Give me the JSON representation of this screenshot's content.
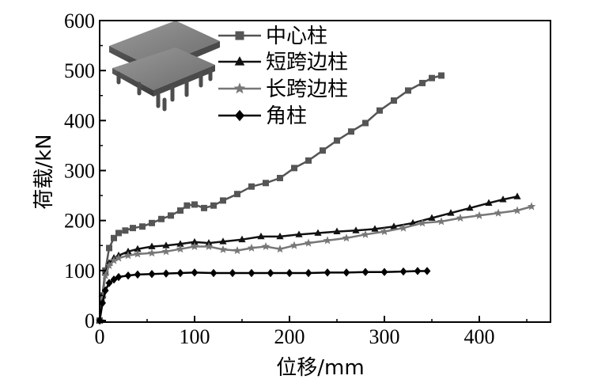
{
  "chart_data": {
    "type": "line",
    "xlabel": "位移/mm",
    "ylabel": "荷载/kN",
    "xlim": [
      0,
      475
    ],
    "ylim": [
      0,
      600
    ],
    "x_ticks": [
      0,
      100,
      200,
      300,
      400
    ],
    "y_ticks": [
      0,
      100,
      200,
      300,
      400,
      500,
      600
    ],
    "x_tick_labels": [
      "0",
      "100",
      "200",
      "300",
      "400"
    ],
    "y_tick_labels": [
      "0",
      "100",
      "200",
      "300",
      "400",
      "500",
      "600"
    ],
    "grid": false,
    "legend_position": "top-right",
    "inset_image": "3D slab-column structure model",
    "series": [
      {
        "name": "中心柱",
        "marker": "square",
        "color": "#555555",
        "x": [
          0,
          3,
          6,
          10,
          15,
          20,
          27,
          35,
          45,
          55,
          65,
          75,
          85,
          92,
          100,
          110,
          120,
          130,
          145,
          160,
          175,
          190,
          205,
          220,
          235,
          250,
          265,
          280,
          295,
          310,
          325,
          340,
          350,
          360
        ],
        "y": [
          0,
          50,
          100,
          145,
          165,
          175,
          180,
          185,
          188,
          195,
          203,
          210,
          220,
          230,
          232,
          225,
          230,
          240,
          253,
          268,
          275,
          285,
          305,
          320,
          340,
          360,
          378,
          395,
          420,
          440,
          460,
          475,
          485,
          490
        ]
      },
      {
        "name": "短跨边柱",
        "marker": "triangle",
        "color": "#111111",
        "x": [
          0,
          3,
          6,
          10,
          15,
          20,
          30,
          40,
          55,
          70,
          85,
          100,
          115,
          130,
          150,
          170,
          190,
          210,
          230,
          250,
          270,
          290,
          310,
          330,
          350,
          370,
          390,
          410,
          425,
          440
        ],
        "y": [
          0,
          50,
          95,
          115,
          125,
          130,
          138,
          143,
          148,
          150,
          153,
          157,
          155,
          158,
          162,
          168,
          168,
          172,
          175,
          178,
          180,
          183,
          188,
          195,
          205,
          215,
          225,
          235,
          242,
          248
        ]
      },
      {
        "name": "长跨边柱",
        "marker": "star",
        "color": "#777777",
        "x": [
          0,
          3,
          6,
          10,
          15,
          20,
          30,
          40,
          55,
          70,
          85,
          100,
          115,
          130,
          145,
          160,
          175,
          190,
          205,
          220,
          240,
          260,
          280,
          300,
          320,
          340,
          360,
          380,
          400,
          420,
          440,
          455
        ],
        "y": [
          0,
          45,
          90,
          110,
          120,
          125,
          130,
          133,
          135,
          138,
          143,
          148,
          148,
          142,
          140,
          145,
          148,
          143,
          150,
          155,
          160,
          165,
          172,
          178,
          185,
          195,
          198,
          205,
          210,
          215,
          220,
          228
        ]
      },
      {
        "name": "角柱",
        "marker": "diamond",
        "color": "#000000",
        "x": [
          0,
          3,
          6,
          10,
          15,
          20,
          30,
          40,
          55,
          70,
          85,
          100,
          120,
          140,
          160,
          180,
          200,
          220,
          240,
          260,
          280,
          300,
          320,
          335,
          345
        ],
        "y": [
          0,
          35,
          60,
          75,
          82,
          87,
          90,
          92,
          93,
          94,
          95,
          96,
          95,
          95,
          95,
          95,
          95,
          95,
          96,
          96,
          97,
          97,
          98,
          99,
          99
        ]
      }
    ]
  }
}
